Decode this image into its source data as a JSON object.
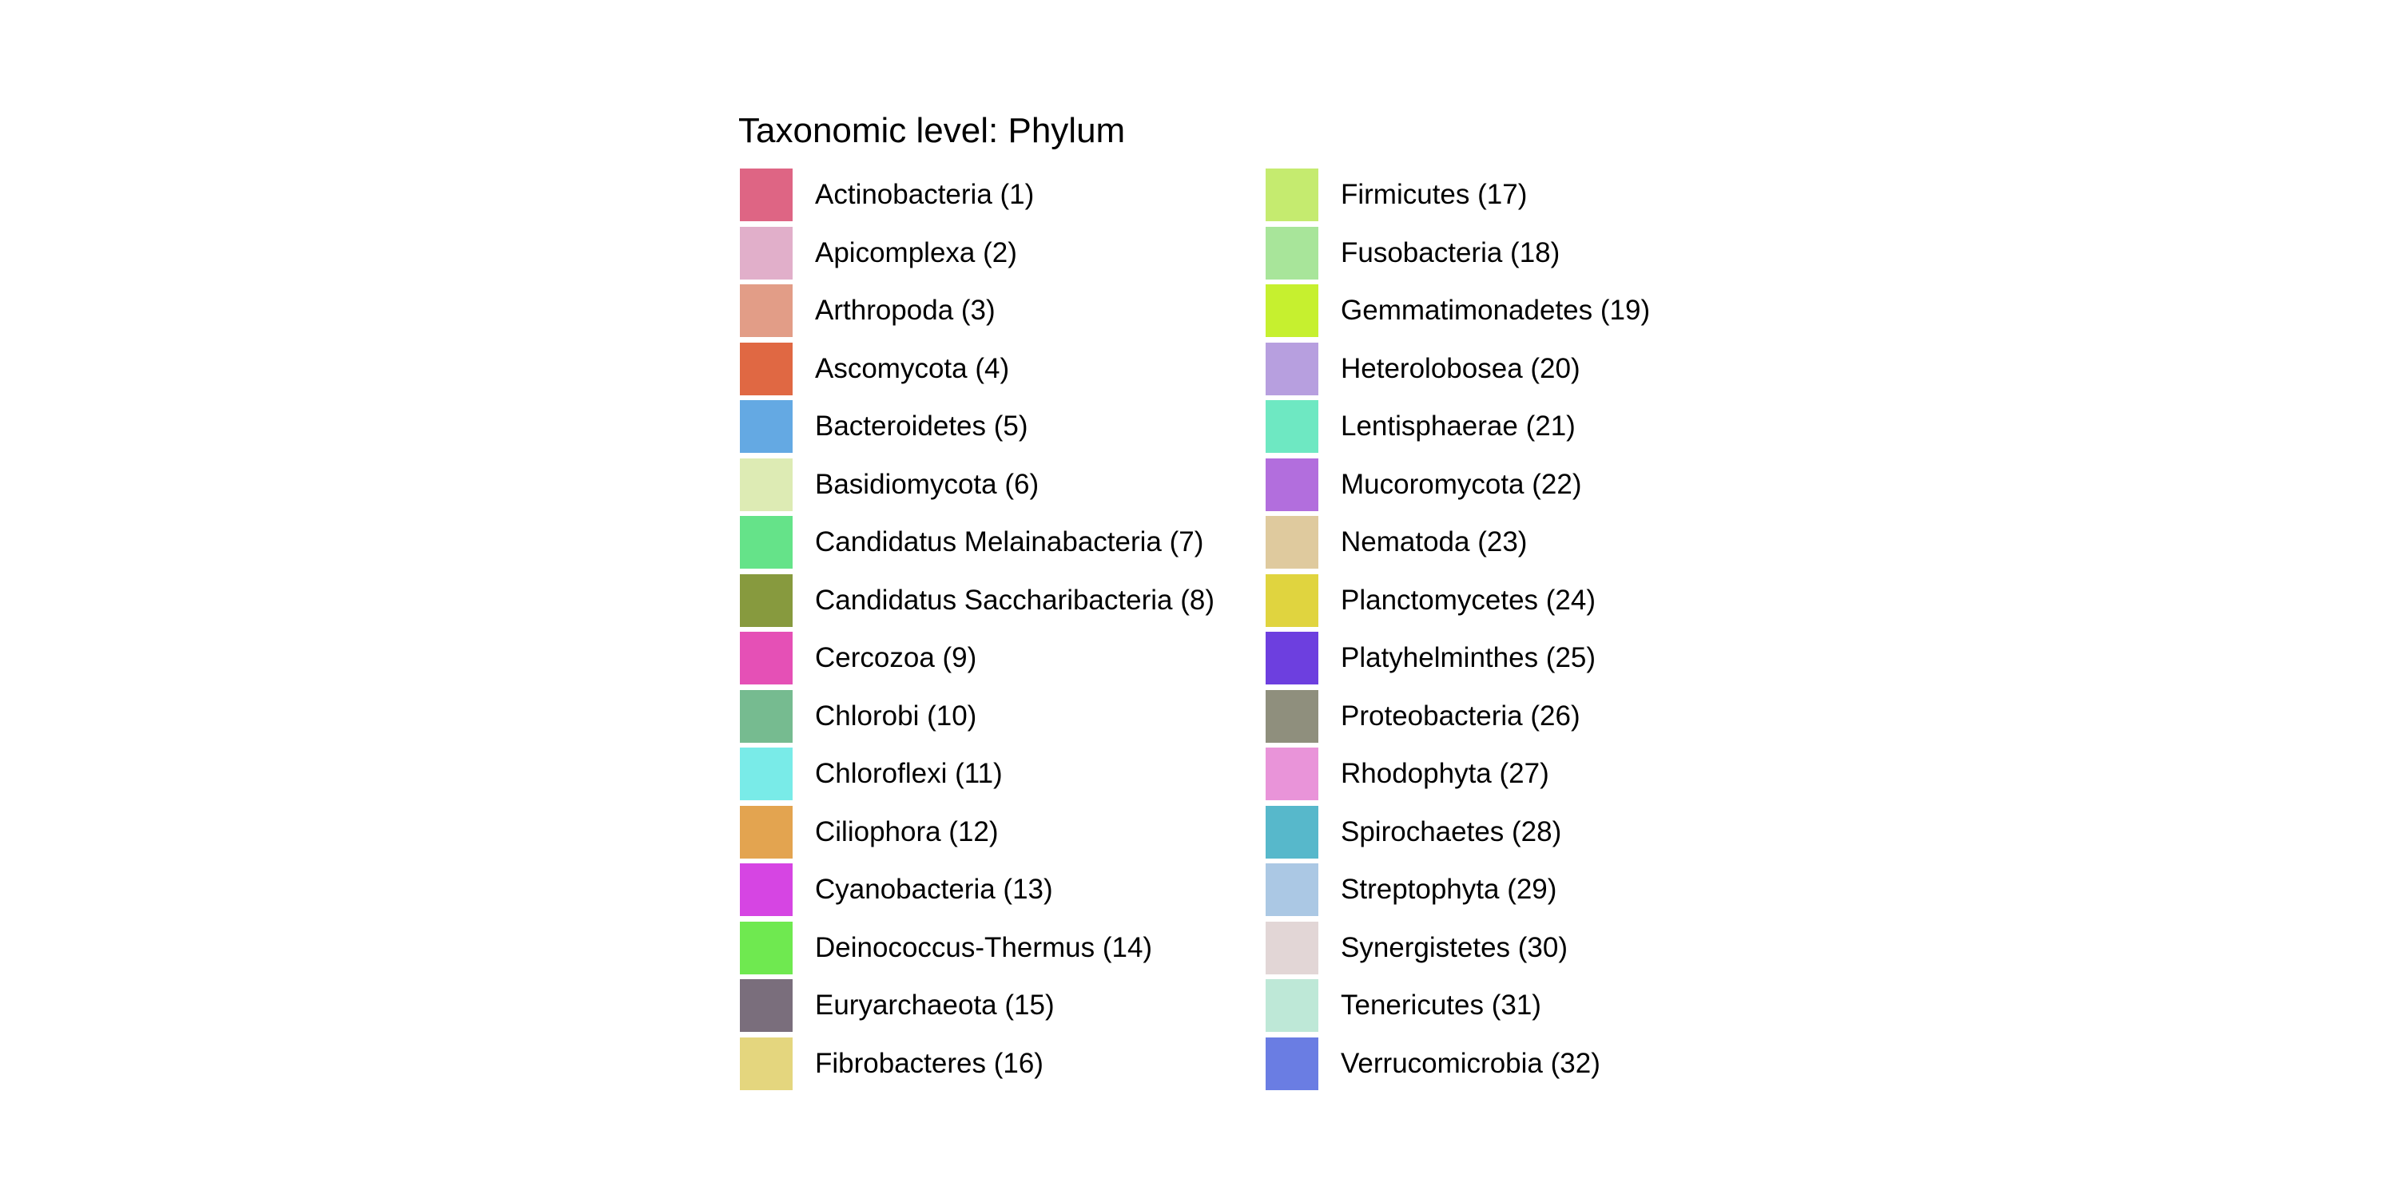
{
  "chart_data": {
    "type": "legend",
    "title": "Taxonomic level: Phylum",
    "entries": [
      {
        "label": "Actinobacteria (1)",
        "color": "#DE6584"
      },
      {
        "label": "Apicomplexa (2)",
        "color": "#E1AFCA"
      },
      {
        "label": "Arthropoda (3)",
        "color": "#E29D87"
      },
      {
        "label": "Ascomycota (4)",
        "color": "#E06843"
      },
      {
        "label": "Bacteroidetes (5)",
        "color": "#64A9E3"
      },
      {
        "label": "Basidiomycota (6)",
        "color": "#DDEBB4"
      },
      {
        "label": "Candidatus Melainabacteria (7)",
        "color": "#65E389"
      },
      {
        "label": "Candidatus Saccharibacteria (8)",
        "color": "#879A3E"
      },
      {
        "label": "Cercozoa (9)",
        "color": "#E550B6"
      },
      {
        "label": "Chlorobi (10)",
        "color": "#76BB90"
      },
      {
        "label": "Chloroflexi (11)",
        "color": "#79EBE8"
      },
      {
        "label": "Ciliophora (12)",
        "color": "#E3A450"
      },
      {
        "label": "Cyanobacteria (13)",
        "color": "#D645E3"
      },
      {
        "label": "Deinococcus-Thermus (14)",
        "color": "#6FE950"
      },
      {
        "label": "Euryarchaeota (15)",
        "color": "#7A6E7C"
      },
      {
        "label": "Fibrobacteres (16)",
        "color": "#E4D67E"
      },
      {
        "label": "Firmicutes (17)",
        "color": "#C5EB6F"
      },
      {
        "label": "Fusobacteria (18)",
        "color": "#A8E59A"
      },
      {
        "label": "Gemmatimonadetes (19)",
        "color": "#C6F02F"
      },
      {
        "label": "Heterolobosea (20)",
        "color": "#B79FDF"
      },
      {
        "label": "Lentisphaerae (21)",
        "color": "#6EE8C2"
      },
      {
        "label": "Mucoromycota (22)",
        "color": "#B26EDD"
      },
      {
        "label": "Nematoda (23)",
        "color": "#DFCA9E"
      },
      {
        "label": "Planctomycetes (24)",
        "color": "#E0D43F"
      },
      {
        "label": "Platyhelminthes (25)",
        "color": "#6D3FDF"
      },
      {
        "label": "Proteobacteria (26)",
        "color": "#8F8F7D"
      },
      {
        "label": "Rhodophyta (27)",
        "color": "#E994D9"
      },
      {
        "label": "Spirochaetes (28)",
        "color": "#57B8CB"
      },
      {
        "label": "Streptophyta (29)",
        "color": "#ABC8E4"
      },
      {
        "label": "Synergistetes (30)",
        "color": "#E2D6D6"
      },
      {
        "label": "Tenericutes (31)",
        "color": "#BEE8D7"
      },
      {
        "label": "Verrucomicrobia (32)",
        "color": "#6A7DE3"
      }
    ],
    "columns": 2
  }
}
